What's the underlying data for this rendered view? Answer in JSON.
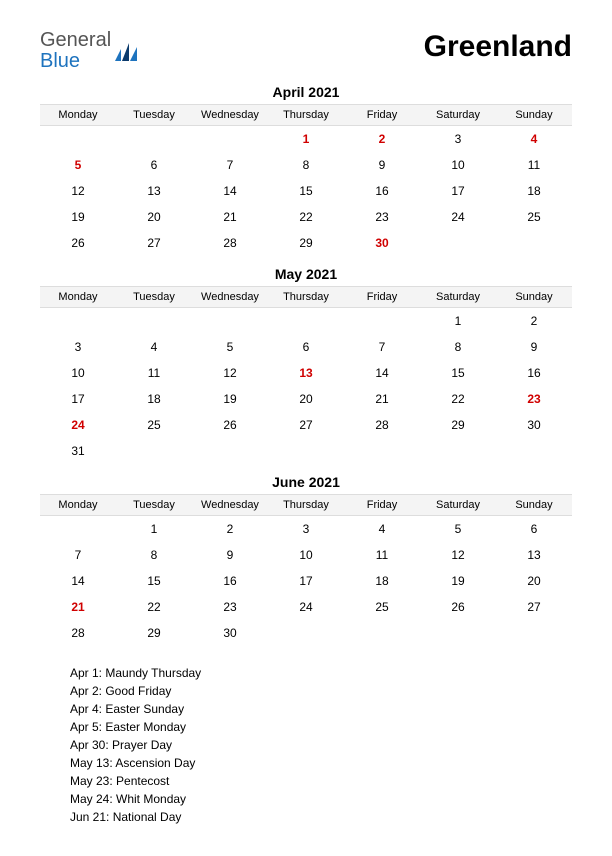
{
  "logo": {
    "general": "General",
    "blue": "Blue"
  },
  "title": "Greenland",
  "weekdays": [
    "Monday",
    "Tuesday",
    "Wednesday",
    "Thursday",
    "Friday",
    "Saturday",
    "Sunday"
  ],
  "colors": {
    "holiday": "#d00000",
    "header_bg": "#f4f4f4",
    "border": "#dddddd",
    "logo_blue": "#1e73be",
    "logo_gray": "#555555"
  },
  "months": [
    {
      "title": "April 2021",
      "weeks": [
        [
          {
            "d": ""
          },
          {
            "d": ""
          },
          {
            "d": ""
          },
          {
            "d": "1",
            "h": true
          },
          {
            "d": "2",
            "h": true
          },
          {
            "d": "3"
          },
          {
            "d": "4",
            "h": true
          }
        ],
        [
          {
            "d": "5",
            "h": true
          },
          {
            "d": "6"
          },
          {
            "d": "7"
          },
          {
            "d": "8"
          },
          {
            "d": "9"
          },
          {
            "d": "10"
          },
          {
            "d": "11"
          }
        ],
        [
          {
            "d": "12"
          },
          {
            "d": "13"
          },
          {
            "d": "14"
          },
          {
            "d": "15"
          },
          {
            "d": "16"
          },
          {
            "d": "17"
          },
          {
            "d": "18"
          }
        ],
        [
          {
            "d": "19"
          },
          {
            "d": "20"
          },
          {
            "d": "21"
          },
          {
            "d": "22"
          },
          {
            "d": "23"
          },
          {
            "d": "24"
          },
          {
            "d": "25"
          }
        ],
        [
          {
            "d": "26"
          },
          {
            "d": "27"
          },
          {
            "d": "28"
          },
          {
            "d": "29"
          },
          {
            "d": "30",
            "h": true
          },
          {
            "d": ""
          },
          {
            "d": ""
          }
        ]
      ]
    },
    {
      "title": "May 2021",
      "weeks": [
        [
          {
            "d": ""
          },
          {
            "d": ""
          },
          {
            "d": ""
          },
          {
            "d": ""
          },
          {
            "d": ""
          },
          {
            "d": "1"
          },
          {
            "d": "2"
          }
        ],
        [
          {
            "d": "3"
          },
          {
            "d": "4"
          },
          {
            "d": "5"
          },
          {
            "d": "6"
          },
          {
            "d": "7"
          },
          {
            "d": "8"
          },
          {
            "d": "9"
          }
        ],
        [
          {
            "d": "10"
          },
          {
            "d": "11"
          },
          {
            "d": "12"
          },
          {
            "d": "13",
            "h": true
          },
          {
            "d": "14"
          },
          {
            "d": "15"
          },
          {
            "d": "16"
          }
        ],
        [
          {
            "d": "17"
          },
          {
            "d": "18"
          },
          {
            "d": "19"
          },
          {
            "d": "20"
          },
          {
            "d": "21"
          },
          {
            "d": "22"
          },
          {
            "d": "23",
            "h": true
          }
        ],
        [
          {
            "d": "24",
            "h": true
          },
          {
            "d": "25"
          },
          {
            "d": "26"
          },
          {
            "d": "27"
          },
          {
            "d": "28"
          },
          {
            "d": "29"
          },
          {
            "d": "30"
          }
        ],
        [
          {
            "d": "31"
          },
          {
            "d": ""
          },
          {
            "d": ""
          },
          {
            "d": ""
          },
          {
            "d": ""
          },
          {
            "d": ""
          },
          {
            "d": ""
          }
        ]
      ]
    },
    {
      "title": "June 2021",
      "weeks": [
        [
          {
            "d": ""
          },
          {
            "d": "1"
          },
          {
            "d": "2"
          },
          {
            "d": "3"
          },
          {
            "d": "4"
          },
          {
            "d": "5"
          },
          {
            "d": "6"
          }
        ],
        [
          {
            "d": "7"
          },
          {
            "d": "8"
          },
          {
            "d": "9"
          },
          {
            "d": "10"
          },
          {
            "d": "11"
          },
          {
            "d": "12"
          },
          {
            "d": "13"
          }
        ],
        [
          {
            "d": "14"
          },
          {
            "d": "15"
          },
          {
            "d": "16"
          },
          {
            "d": "17"
          },
          {
            "d": "18"
          },
          {
            "d": "19"
          },
          {
            "d": "20"
          }
        ],
        [
          {
            "d": "21",
            "h": true
          },
          {
            "d": "22"
          },
          {
            "d": "23"
          },
          {
            "d": "24"
          },
          {
            "d": "25"
          },
          {
            "d": "26"
          },
          {
            "d": "27"
          }
        ],
        [
          {
            "d": "28"
          },
          {
            "d": "29"
          },
          {
            "d": "30"
          },
          {
            "d": ""
          },
          {
            "d": ""
          },
          {
            "d": ""
          },
          {
            "d": ""
          }
        ]
      ]
    }
  ],
  "holidays": [
    "Apr 1: Maundy Thursday",
    "Apr 2: Good Friday",
    "Apr 4: Easter Sunday",
    "Apr 5: Easter Monday",
    "Apr 30: Prayer Day",
    "May 13: Ascension Day",
    "May 23: Pentecost",
    "May 24: Whit Monday",
    "Jun 21: National Day"
  ]
}
